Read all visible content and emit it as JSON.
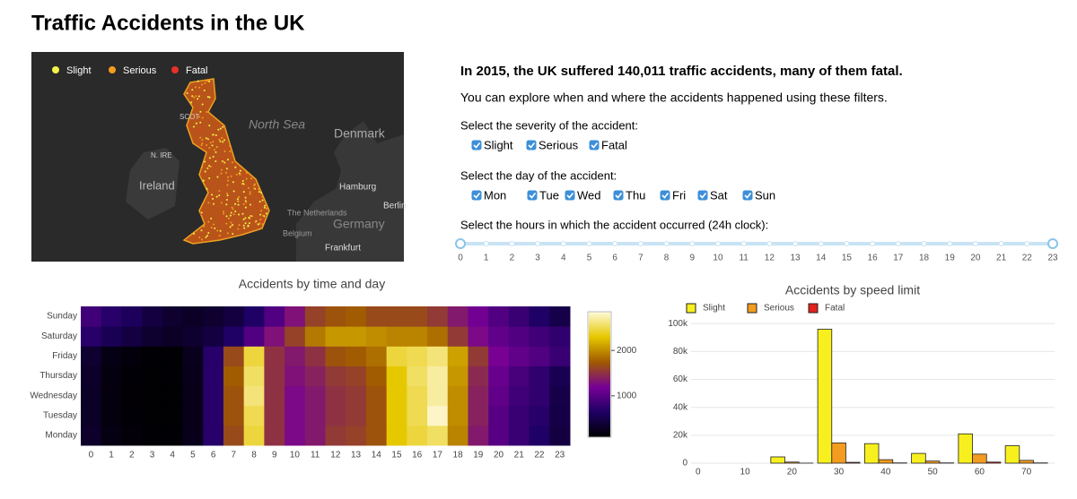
{
  "header": {
    "title": "Traffic Accidents in the UK"
  },
  "map": {
    "legend": [
      {
        "label": "Slight",
        "color": "#f3f347"
      },
      {
        "label": "Serious",
        "color": "#f39c1f"
      },
      {
        "label": "Fatal",
        "color": "#e8302a"
      }
    ],
    "places": [
      "North Sea",
      "Denmark",
      "Ireland",
      "Hamburg",
      "Berlin",
      "The Netherlands",
      "Germany",
      "Belgium",
      "Frankfurt",
      "SCOT",
      "N. IRE"
    ]
  },
  "filters": {
    "intro": "In 2015, the UK suffered 140,011 traffic accidents, many of them fatal.",
    "explore": "You can explore when and where the accidents happened using these filters.",
    "severity": {
      "label": "Select the severity of the accident:",
      "options": [
        {
          "label": "Slight",
          "checked": true
        },
        {
          "label": "Serious",
          "checked": true
        },
        {
          "label": "Fatal",
          "checked": true
        }
      ]
    },
    "day": {
      "label": "Select the day of the accident:",
      "options": [
        {
          "label": "Mon",
          "checked": true
        },
        {
          "label": "Tue",
          "checked": true
        },
        {
          "label": "Wed",
          "checked": true
        },
        {
          "label": "Thu",
          "checked": true
        },
        {
          "label": "Fri",
          "checked": true
        },
        {
          "label": "Sat",
          "checked": true
        },
        {
          "label": "Sun",
          "checked": true
        }
      ]
    },
    "hours": {
      "label": "Select the hours in which the accident occurred (24h clock):",
      "min": 0,
      "max": 23,
      "value": [
        0,
        23
      ],
      "ticks": [
        0,
        1,
        2,
        3,
        4,
        5,
        6,
        7,
        8,
        9,
        10,
        11,
        12,
        13,
        14,
        15,
        16,
        17,
        18,
        19,
        20,
        21,
        22,
        23
      ]
    }
  },
  "chart_data": [
    {
      "type": "heatmap",
      "title": "Accidents by time and day",
      "x": [
        0,
        1,
        2,
        3,
        4,
        5,
        6,
        7,
        8,
        9,
        10,
        11,
        12,
        13,
        14,
        15,
        16,
        17,
        18,
        19,
        20,
        21,
        22,
        23
      ],
      "categories": [
        "Monday",
        "Tuesday",
        "Wednesday",
        "Thursday",
        "Friday",
        "Saturday",
        "Sunday"
      ],
      "z": [
        [
          330,
          190,
          140,
          110,
          110,
          240,
          700,
          1650,
          2450,
          1500,
          1250,
          1350,
          1550,
          1600,
          1700,
          2300,
          2450,
          2550,
          1950,
          1350,
          1000,
          800,
          650,
          450
        ],
        [
          300,
          170,
          130,
          100,
          100,
          230,
          700,
          1700,
          2500,
          1500,
          1250,
          1350,
          1500,
          1550,
          1700,
          2300,
          2500,
          2800,
          2000,
          1400,
          1000,
          800,
          700,
          480
        ],
        [
          300,
          170,
          120,
          100,
          100,
          230,
          700,
          1700,
          2600,
          1500,
          1250,
          1350,
          1500,
          1550,
          1700,
          2300,
          2500,
          2700,
          2000,
          1400,
          1050,
          850,
          750,
          500
        ],
        [
          320,
          180,
          130,
          100,
          110,
          240,
          700,
          1750,
          2550,
          1500,
          1300,
          1400,
          1550,
          1600,
          1750,
          2300,
          2550,
          2700,
          2050,
          1450,
          1100,
          900,
          750,
          550
        ],
        [
          350,
          200,
          150,
          110,
          110,
          250,
          700,
          1650,
          2450,
          1500,
          1350,
          1500,
          1700,
          1750,
          1850,
          2450,
          2500,
          2600,
          2100,
          1550,
          1200,
          1050,
          950,
          800
        ],
        [
          700,
          550,
          450,
          350,
          300,
          350,
          450,
          650,
          950,
          1300,
          1600,
          1900,
          2050,
          2050,
          2000,
          1950,
          1950,
          1850,
          1550,
          1250,
          1050,
          950,
          850,
          750
        ],
        [
          850,
          700,
          600,
          450,
          350,
          300,
          350,
          450,
          650,
          950,
          1300,
          1600,
          1700,
          1750,
          1650,
          1650,
          1650,
          1550,
          1350,
          1150,
          950,
          800,
          650,
          500
        ]
      ],
      "zlim": [
        90,
        2850
      ],
      "colorbar_ticks": [
        1000,
        2000
      ],
      "colorscale": [
        [
          0,
          "#000000"
        ],
        [
          0.2,
          "#1e0064"
        ],
        [
          0.4,
          "#780096"
        ],
        [
          0.6,
          "#a05a00"
        ],
        [
          0.8,
          "#e6c800"
        ],
        [
          1,
          "#fffadc"
        ]
      ]
    },
    {
      "type": "bar",
      "title": "Accidents by speed limit",
      "x": [
        20,
        30,
        40,
        50,
        60,
        70
      ],
      "series": [
        {
          "name": "Slight",
          "color": "#f7f01e",
          "values": [
            4500,
            96000,
            14000,
            7000,
            21000,
            12500
          ]
        },
        {
          "name": "Serious",
          "color": "#f39c1f",
          "values": [
            800,
            14500,
            2500,
            1500,
            6500,
            2000
          ]
        },
        {
          "name": "Fatal",
          "color": "#e3221c",
          "values": [
            50,
            600,
            200,
            200,
            800,
            200
          ]
        }
      ],
      "xlim": [
        -1.5,
        76
      ],
      "xticks": [
        0,
        10,
        20,
        30,
        40,
        50,
        60,
        70
      ],
      "ylim": [
        0,
        104000
      ],
      "yticks": [
        0,
        {
          "value": 20000,
          "label": "20k"
        },
        {
          "value": 40000,
          "label": "40k"
        },
        {
          "value": 60000,
          "label": "60k"
        },
        {
          "value": 80000,
          "label": "80k"
        },
        {
          "value": 100000,
          "label": "100k"
        }
      ],
      "grid": true,
      "legend": "top-left"
    }
  ]
}
